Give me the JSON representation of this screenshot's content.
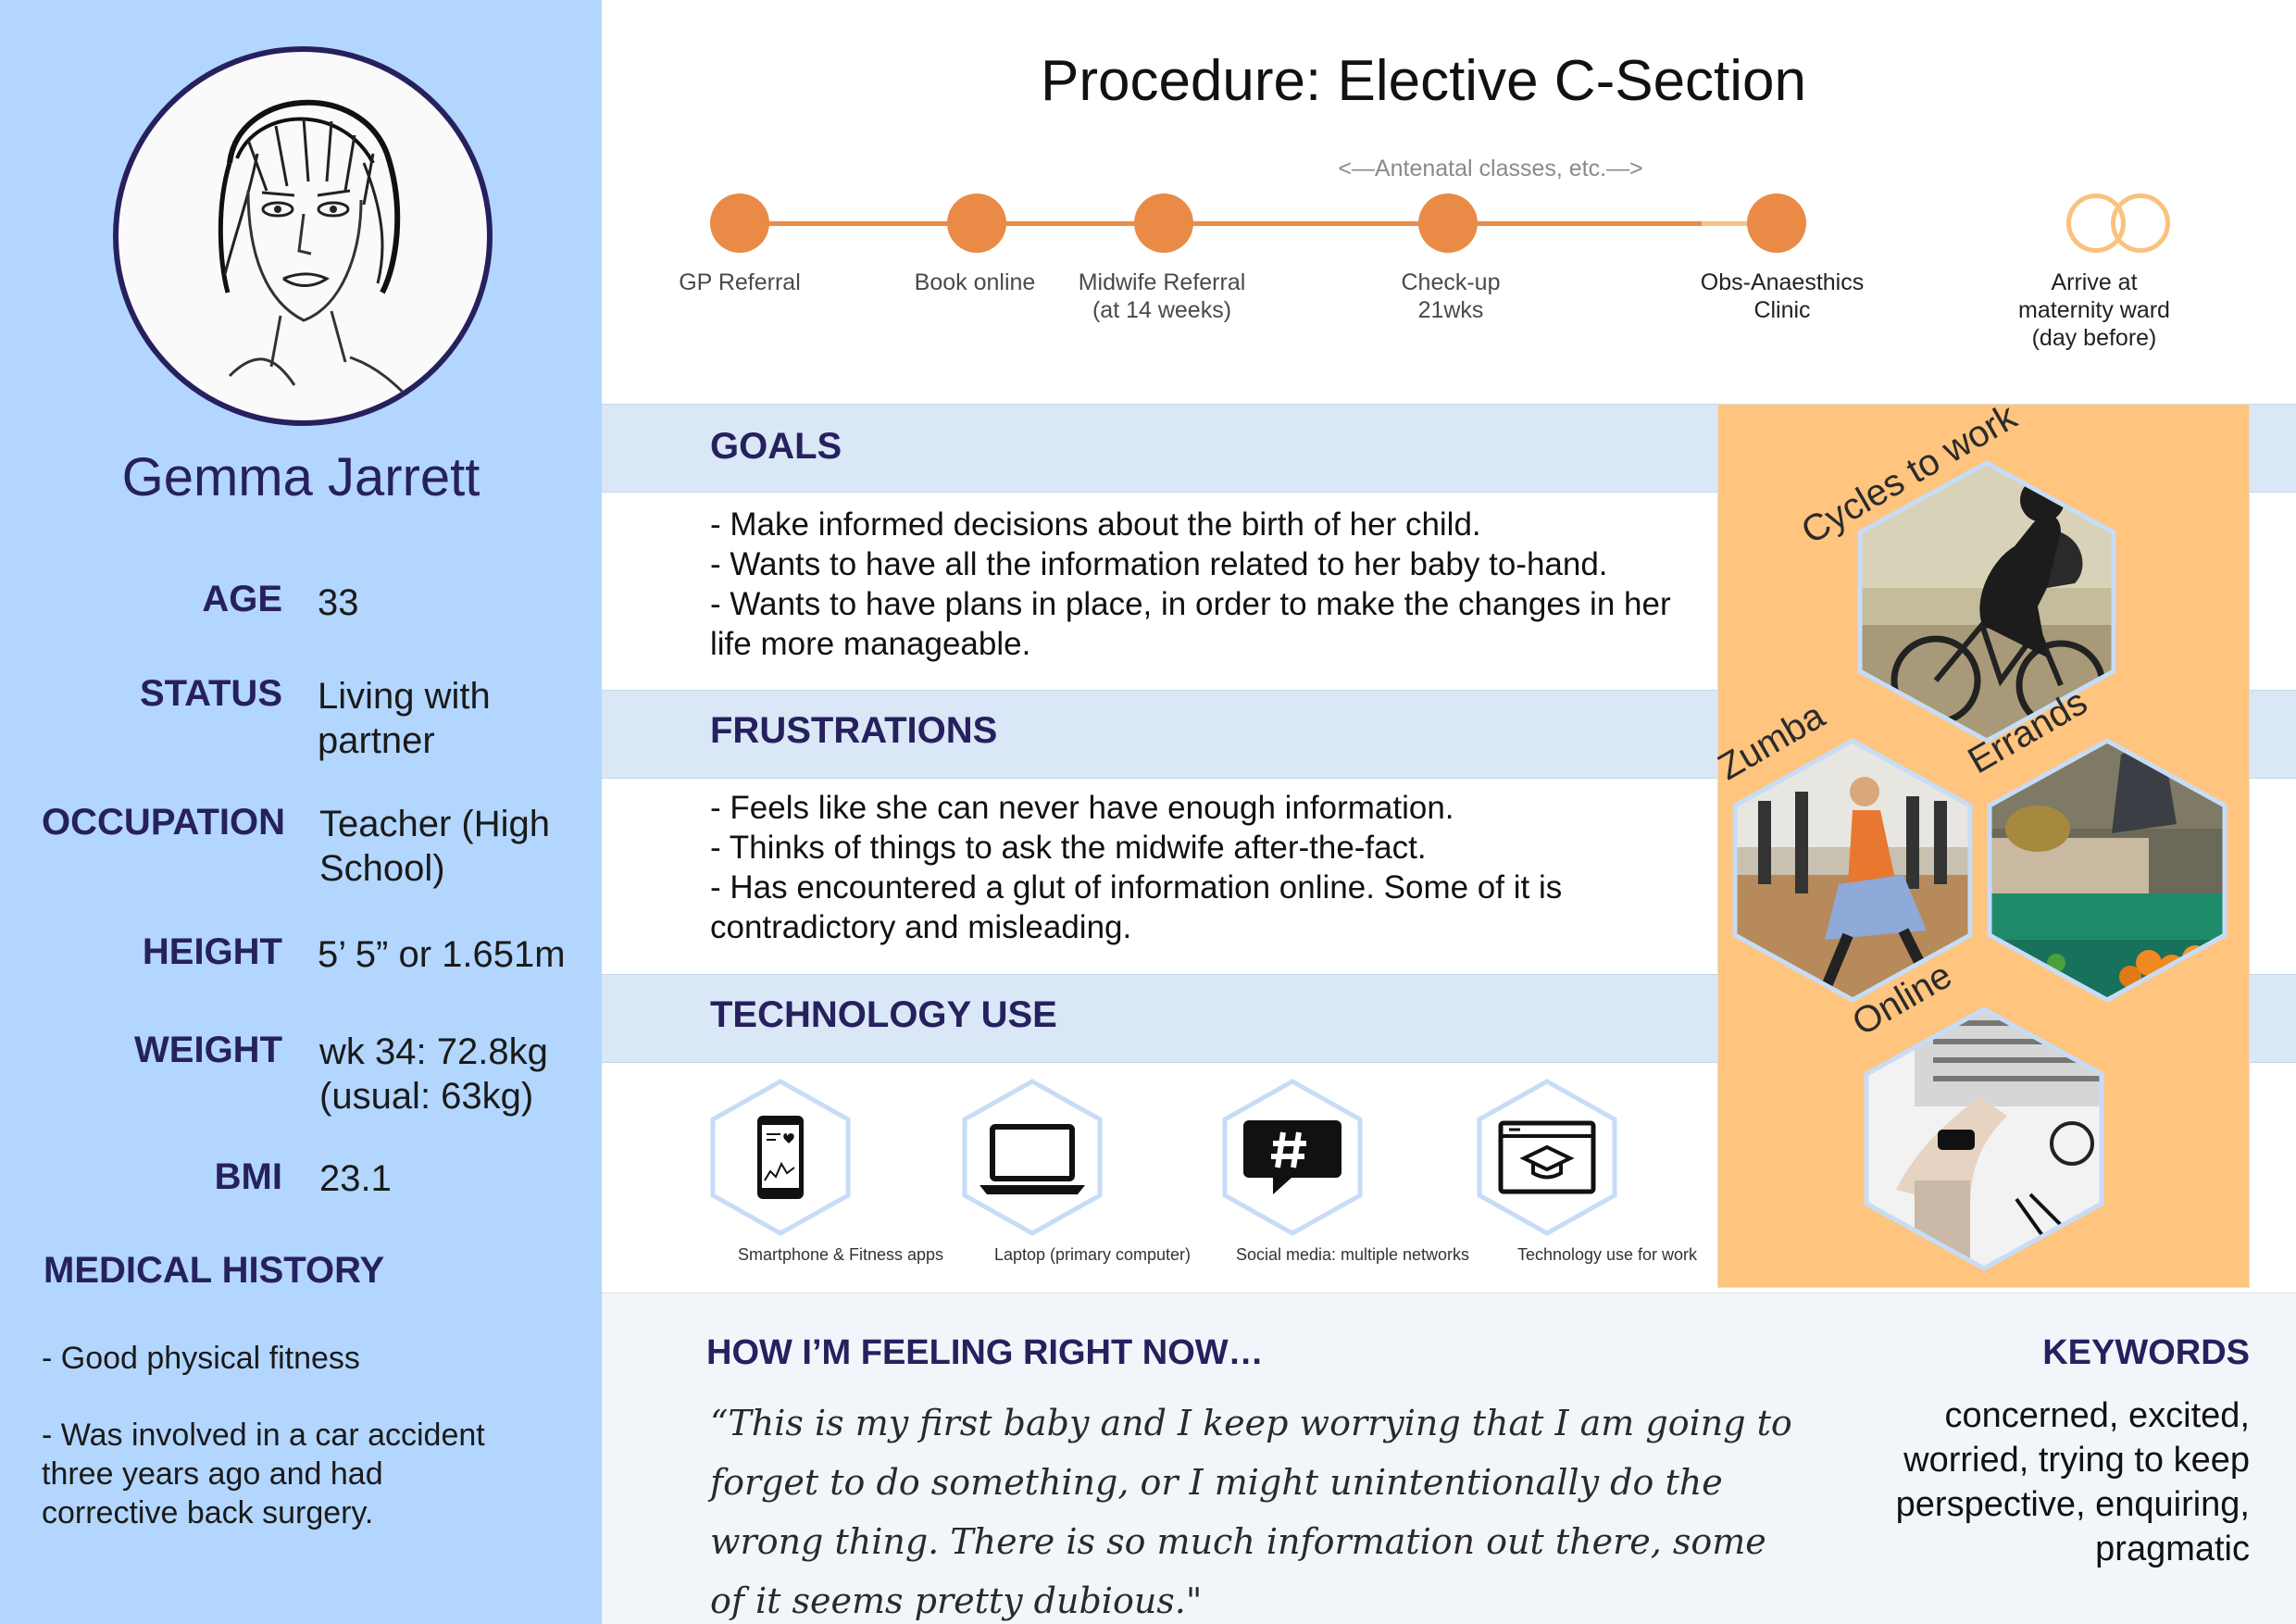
{
  "persona": {
    "name": "Gemma Jarrett",
    "facts": [
      {
        "label": "AGE",
        "value": "33"
      },
      {
        "label": "STATUS",
        "value": "Living with partner"
      },
      {
        "label": "OCCUPATION",
        "value": "Teacher (High School)"
      },
      {
        "label": "HEIGHT",
        "value": "5’ 5” or 1.651m"
      },
      {
        "label": "WEIGHT",
        "value": "wk 34: 72.8kg (usual: 63kg)"
      },
      {
        "label": "BMI",
        "value": "23.1"
      }
    ],
    "medical_history": {
      "heading": "MEDICAL HISTORY",
      "items": [
        "- Good physical fitness",
        "- Was involved in a car accident\n  three years ago and had\n  corrective back surgery."
      ]
    }
  },
  "procedure": {
    "title": "Procedure: Elective C-Section",
    "note": "<—Antenatal classes, etc.—>",
    "steps": [
      {
        "label": "GP Referral",
        "done": true
      },
      {
        "label": "Book online",
        "done": true
      },
      {
        "label": "Midwife Referral\n(at 14 weeks)",
        "done": true
      },
      {
        "label": "Check-up\n21wks",
        "done": true
      },
      {
        "label": "Obs-Anaesthics\nClinic",
        "done": true
      },
      {
        "label": "Arrive at\nmaternity ward\n(day before)",
        "done": false
      }
    ],
    "colors": {
      "done": "#e98b46",
      "upcoming": "#f9c27e"
    }
  },
  "goals": {
    "heading": "GOALS",
    "lines": [
      "- Make informed decisions about the birth of her child.",
      "- Wants to have all the information related to her baby to-hand.",
      "- Wants to have plans in place, in order to make the changes in her life more manageable."
    ]
  },
  "frustrations": {
    "heading": "FRUSTRATIONS",
    "lines": [
      "- Feels like she can never have enough information.",
      "- Thinks of things to ask the midwife after-the-fact.",
      "- Has encountered a glut of information online. Some of it is contradictory and misleading."
    ]
  },
  "technology": {
    "heading": "TECHNOLOGY USE",
    "items": [
      {
        "label": "Smartphone & Fitness apps",
        "icon": "smartphone-icon"
      },
      {
        "label": "Laptop (primary computer)",
        "icon": "laptop-icon"
      },
      {
        "label": "Social media: multiple networks",
        "icon": "hashtag-chat-icon"
      },
      {
        "label": "Technology use for work",
        "icon": "graduation-browser-icon"
      }
    ]
  },
  "activities": [
    {
      "label": "Cycles to work",
      "image": "cyclist-photo"
    },
    {
      "label": "Zumba",
      "image": "zumba-photo"
    },
    {
      "label": "Errands",
      "image": "market-photo"
    },
    {
      "label": "Online",
      "image": "laptop-typing-photo"
    }
  ],
  "feeling": {
    "heading": "HOW I’M FEELING RIGHT NOW…",
    "quote": "“This is my first baby and I keep worrying that I am going to forget to do something, or I might unintentionally do the wrong thing. There is so much information out there, some of it seems pretty dubious.\""
  },
  "keywords": {
    "heading": "KEYWORDS",
    "text": "concerned, excited, worried, trying to keep perspective, enquiring, pragmatic"
  },
  "theme": {
    "sidebar": "#b3d6fe",
    "heading": "#27205e",
    "band": "#d9e7f6",
    "activity_panel": "#ffc47e",
    "hex_border": "#c7dcf6"
  }
}
